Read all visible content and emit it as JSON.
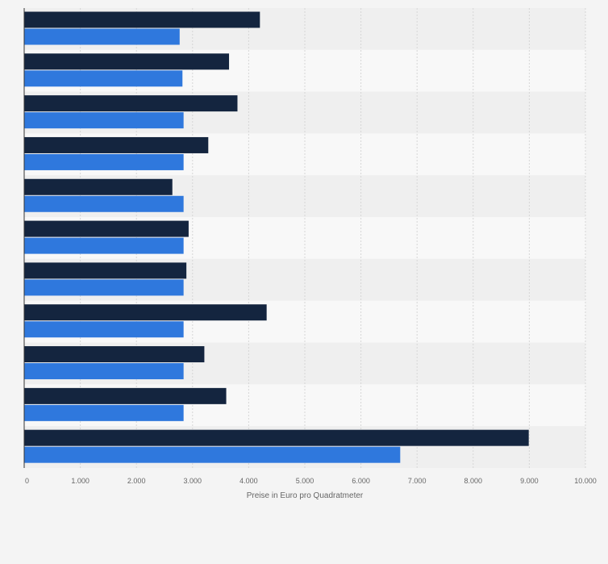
{
  "chart_data": {
    "type": "bar",
    "orientation": "horizontal",
    "xlabel": "Preise in Euro pro Quadratmeter",
    "xlim": [
      0,
      10000
    ],
    "x_ticks": [
      0,
      1000,
      2000,
      3000,
      4000,
      5000,
      6000,
      7000,
      8000,
      9000,
      10000
    ],
    "x_tick_labels": [
      "0",
      "1.000",
      "2.000",
      "3.000",
      "4.000",
      "5.000",
      "6.000",
      "7.000",
      "8.000",
      "9.000",
      "10.000"
    ],
    "grid": true,
    "series": [
      {
        "color": "#14253f",
        "values": [
          4200,
          3650,
          3800,
          3280,
          2640,
          2930,
          2890,
          4320,
          3210,
          3600,
          8990
        ]
      },
      {
        "color": "#2f78dd",
        "values": [
          2770,
          2820,
          2840,
          2840,
          2840,
          2840,
          2840,
          2840,
          2840,
          2840,
          6700
        ]
      }
    ]
  }
}
